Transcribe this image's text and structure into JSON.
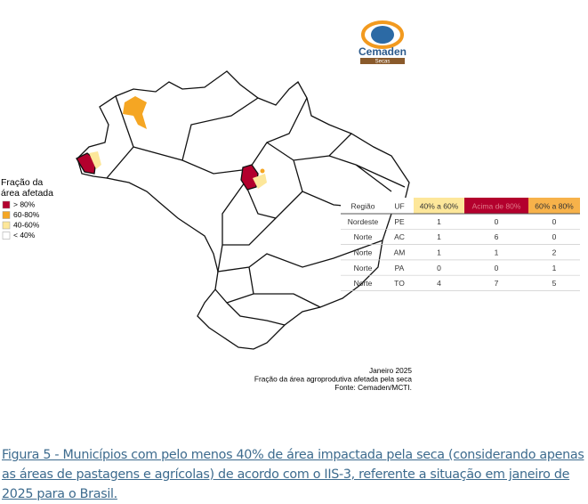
{
  "logo": {
    "name": "Cemaden",
    "tag": "Secas"
  },
  "legend": {
    "title_lines": [
      "Fração da",
      "área afetada"
    ],
    "items": [
      {
        "label": "> 80%",
        "color": "#b3002d"
      },
      {
        "label": "60-80%",
        "color": "#f5a623"
      },
      {
        "label": "40-60%",
        "color": "#fde79a"
      },
      {
        "label": "< 40%",
        "color": "#ffffff"
      }
    ]
  },
  "table": {
    "header": [
      {
        "text": "Região",
        "color": "#ffffff"
      },
      {
        "text": "UF",
        "color": "#ffffff"
      },
      {
        "text": "40% a 60%",
        "color": "#fde79a"
      },
      {
        "text": "Acima de 80%",
        "color": "#b3002d"
      },
      {
        "text": "60% a 80%",
        "color": "#f7b24a"
      }
    ],
    "rows": [
      [
        "Nordeste",
        "PE",
        "1",
        "0",
        "0"
      ],
      [
        "Norte",
        "AC",
        "1",
        "6",
        "0"
      ],
      [
        "Norte",
        "AM",
        "1",
        "1",
        "2"
      ],
      [
        "Norte",
        "PA",
        "0",
        "0",
        "1"
      ],
      [
        "Norte",
        "TO",
        "4",
        "7",
        "5"
      ]
    ]
  },
  "footer": [
    "Janeiro 2025",
    "Fração da área agroprodutiva afetada pela seca",
    "Fonte: Cemaden/MCTI."
  ],
  "caption": "Figura 5 - Municípios com pelo menos 40% de área impactada pela seca (considerando apenas as áreas de pastagens e agrícolas) de acordo com o IIS-3, referente a situação em janeiro de 2025 para o Brasil."
}
